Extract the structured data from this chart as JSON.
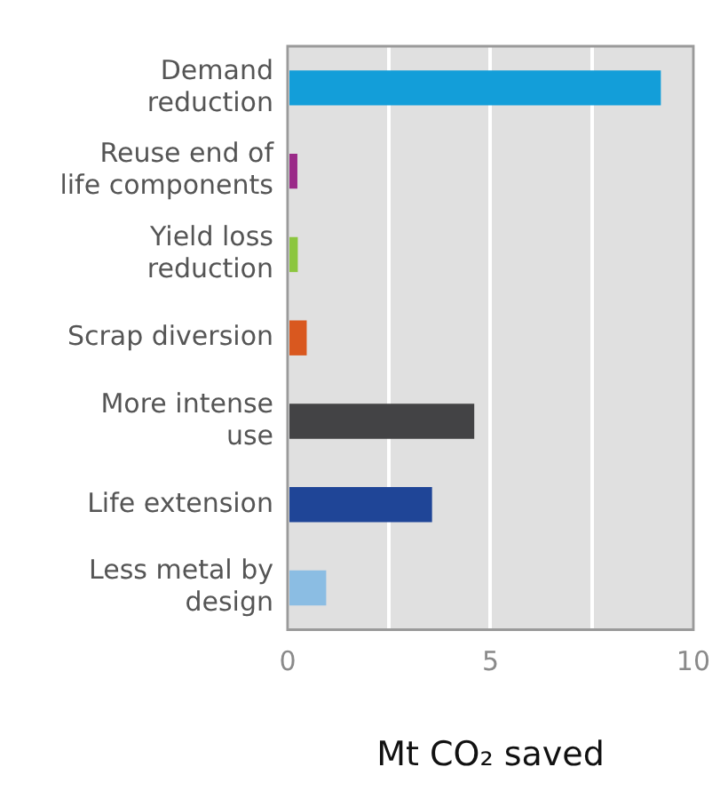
{
  "chart_data": {
    "type": "bar",
    "orientation": "horizontal",
    "xlabel": "Mt CO₂ saved",
    "categories": [
      "Demand reduction",
      "Reuse end of life components",
      "Yield loss reduction",
      "Scrap diversion",
      "More intense use",
      "Life extension",
      "Less metal by design"
    ],
    "values": [
      9.2,
      0.24,
      0.25,
      0.47,
      4.6,
      3.56,
      0.95
    ],
    "colors": [
      "#139ed9",
      "#9a2a88",
      "#8cc63f",
      "#d9581f",
      "#434345",
      "#1f4597",
      "#8bbde3"
    ],
    "xlim": [
      0,
      10
    ],
    "xticks": [
      0,
      {
        "value": 2.5,
        "label": null
      },
      5,
      {
        "value": 7.5,
        "label": null
      },
      10
    ],
    "grid": "x",
    "legend": false
  }
}
